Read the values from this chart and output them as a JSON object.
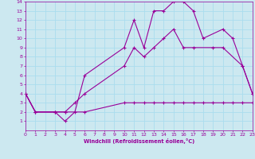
{
  "xlabel": "Windchill (Refroidissement éolien,°C)",
  "xlim": [
    0,
    23
  ],
  "ylim": [
    0,
    14
  ],
  "xticks": [
    0,
    1,
    2,
    3,
    4,
    5,
    6,
    7,
    8,
    9,
    10,
    11,
    12,
    13,
    14,
    15,
    16,
    17,
    18,
    19,
    20,
    21,
    22,
    23
  ],
  "yticks": [
    1,
    2,
    3,
    4,
    5,
    6,
    7,
    8,
    9,
    10,
    11,
    12,
    13,
    14
  ],
  "bg_color": "#cce8f0",
  "line_color": "#990099",
  "grid_color": "#aaddee",
  "line1_x": [
    0,
    1,
    3,
    4,
    5,
    6,
    10,
    11,
    12,
    13,
    14,
    15,
    16,
    17,
    18,
    20,
    21,
    22,
    23
  ],
  "line1_y": [
    4,
    2,
    2,
    1,
    2,
    6,
    9,
    12,
    9,
    13,
    13,
    14,
    14,
    13,
    10,
    11,
    10,
    7,
    4
  ],
  "line2_x": [
    0,
    1,
    3,
    4,
    5,
    6,
    10,
    11,
    12,
    13,
    14,
    15,
    16,
    17,
    19,
    20,
    22,
    23
  ],
  "line2_y": [
    4,
    2,
    2,
    2,
    3,
    4,
    7,
    9,
    8,
    9,
    10,
    11,
    9,
    9,
    9,
    9,
    7,
    4
  ],
  "line3_x": [
    0,
    1,
    3,
    4,
    6,
    10,
    11,
    12,
    13,
    14,
    15,
    16,
    17,
    18,
    19,
    20,
    21,
    22,
    23
  ],
  "line3_y": [
    4,
    2,
    2,
    2,
    2,
    3,
    3,
    3,
    3,
    3,
    3,
    3,
    3,
    3,
    3,
    3,
    3,
    3,
    3
  ]
}
